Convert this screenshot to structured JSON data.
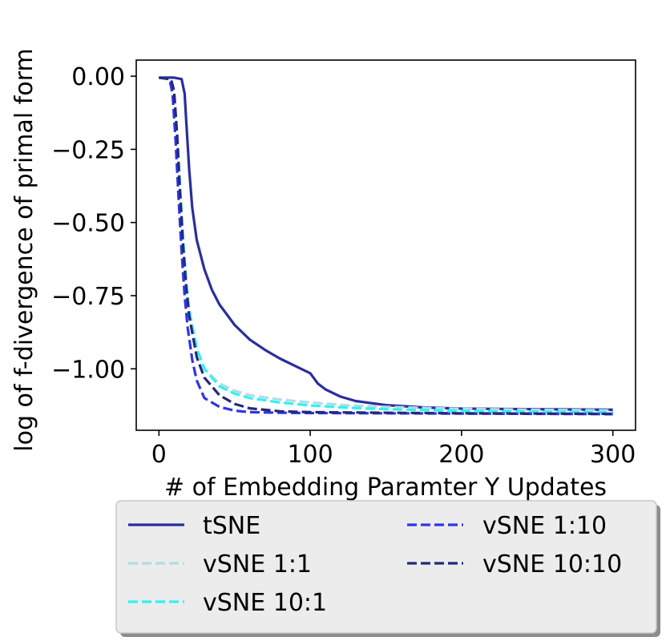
{
  "chart_data": {
    "type": "line",
    "title": "",
    "xlabel": "# of Embedding Paramter Y Updates",
    "ylabel": "log of f-divergence of primal form",
    "xlim": [
      -15,
      315
    ],
    "ylim": [
      -1.21,
      0.055
    ],
    "xticks": [
      0,
      100,
      200,
      300
    ],
    "xtick_labels": [
      "0",
      "100",
      "200",
      "300"
    ],
    "yticks": [
      0.0,
      -0.25,
      -0.5,
      -0.75,
      -1.0
    ],
    "ytick_labels": [
      "0.00",
      "−0.25",
      "−0.50",
      "−0.75",
      "−1.00"
    ],
    "grid": false,
    "legend_position": "below plot, two columns",
    "series": [
      {
        "name": "tSNE",
        "color": "#2a2e9c",
        "dash": "solid",
        "x": [
          0,
          10,
          15,
          17,
          18,
          20,
          22,
          25,
          30,
          35,
          40,
          50,
          60,
          70,
          80,
          90,
          100,
          105,
          110,
          120,
          130,
          150,
          175,
          200,
          250,
          300
        ],
        "y": [
          -0.005,
          -0.005,
          -0.01,
          -0.06,
          -0.15,
          -0.32,
          -0.45,
          -0.56,
          -0.66,
          -0.73,
          -0.78,
          -0.85,
          -0.9,
          -0.935,
          -0.965,
          -0.99,
          -1.015,
          -1.05,
          -1.07,
          -1.095,
          -1.11,
          -1.124,
          -1.132,
          -1.136,
          -1.138,
          -1.14
        ]
      },
      {
        "name": "vSNE 1:1",
        "color": "#b0dce6",
        "dash": "dashed",
        "x": [
          0,
          8,
          10,
          12,
          14,
          16,
          18,
          20,
          25,
          30,
          40,
          50,
          60,
          80,
          100,
          125,
          150,
          200,
          250,
          300
        ],
        "y": [
          -0.005,
          -0.01,
          -0.06,
          -0.2,
          -0.38,
          -0.56,
          -0.7,
          -0.8,
          -0.93,
          -1.0,
          -1.05,
          -1.075,
          -1.09,
          -1.105,
          -1.115,
          -1.125,
          -1.13,
          -1.137,
          -1.14,
          -1.142
        ]
      },
      {
        "name": "vSNE 10:1",
        "color": "#2ef2f2",
        "dash": "dashed",
        "x": [
          0,
          8,
          10,
          12,
          14,
          16,
          18,
          20,
          25,
          30,
          40,
          50,
          60,
          80,
          100,
          125,
          150,
          200,
          250,
          300
        ],
        "y": [
          -0.005,
          -0.01,
          -0.06,
          -0.2,
          -0.38,
          -0.56,
          -0.7,
          -0.8,
          -0.93,
          -1.0,
          -1.06,
          -1.085,
          -1.1,
          -1.115,
          -1.125,
          -1.133,
          -1.138,
          -1.144,
          -1.147,
          -1.149
        ]
      },
      {
        "name": "vSNE 1:10",
        "color": "#2f35e6",
        "dash": "dashed",
        "x": [
          0,
          7,
          9,
          11,
          13,
          15,
          17,
          19,
          22,
          25,
          30,
          40,
          50,
          60,
          80,
          100,
          150,
          200,
          250,
          300
        ],
        "y": [
          -0.005,
          -0.01,
          -0.06,
          -0.22,
          -0.42,
          -0.6,
          -0.75,
          -0.86,
          -0.97,
          -1.04,
          -1.1,
          -1.13,
          -1.143,
          -1.148,
          -1.15,
          -1.151,
          -1.152,
          -1.153,
          -1.154,
          -1.155
        ]
      },
      {
        "name": "vSNE 10:10",
        "color": "#25287a",
        "dash": "dashed",
        "x": [
          0,
          8,
          10,
          12,
          14,
          16,
          18,
          20,
          25,
          30,
          40,
          50,
          60,
          80,
          100,
          150,
          200,
          250,
          300
        ],
        "y": [
          -0.005,
          -0.01,
          -0.05,
          -0.2,
          -0.4,
          -0.58,
          -0.72,
          -0.82,
          -0.96,
          -1.03,
          -1.09,
          -1.12,
          -1.135,
          -1.145,
          -1.148,
          -1.15,
          -1.152,
          -1.153,
          -1.154
        ]
      }
    ]
  }
}
